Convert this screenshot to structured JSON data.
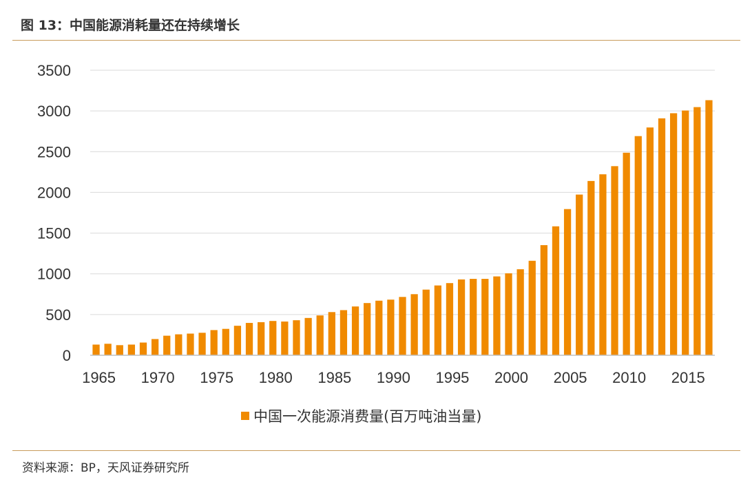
{
  "title": "图 13：中国能源消耗量还在持续增长",
  "source": "资料来源：BP，天风证券研究所",
  "colors": {
    "bar": "#f08a00",
    "grid": "#d9d9d9",
    "axis": "#bfbfbf",
    "rule": "#c89b5a"
  },
  "chart_data": {
    "type": "bar",
    "title": "",
    "xlabel": "",
    "ylabel": "",
    "ylim": [
      0,
      3500
    ],
    "yticks": [
      "0",
      "500",
      "1000",
      "1500",
      "2000",
      "2500",
      "3000",
      "3500"
    ],
    "xtick_labels": [
      "1965",
      "1970",
      "1975",
      "1980",
      "1985",
      "1990",
      "1995",
      "2000",
      "2005",
      "2010",
      "2015"
    ],
    "grid": true,
    "legend_position": "bottom-center",
    "categories": [
      "1965",
      "1966",
      "1967",
      "1968",
      "1969",
      "1970",
      "1971",
      "1972",
      "1973",
      "1974",
      "1975",
      "1976",
      "1977",
      "1978",
      "1979",
      "1980",
      "1981",
      "1982",
      "1983",
      "1984",
      "1985",
      "1986",
      "1987",
      "1988",
      "1989",
      "1990",
      "1991",
      "1992",
      "1993",
      "1994",
      "1995",
      "1996",
      "1997",
      "1998",
      "1999",
      "2000",
      "2001",
      "2002",
      "2003",
      "2004",
      "2005",
      "2006",
      "2007",
      "2008",
      "2009",
      "2010",
      "2011",
      "2012",
      "2013",
      "2014",
      "2015",
      "2016",
      "2017"
    ],
    "series": [
      {
        "name": "中国一次能源消费量(百万吨油当量)",
        "values": [
          131,
          141,
          124,
          131,
          156,
          199,
          240,
          257,
          266,
          276,
          309,
          324,
          362,
          397,
          406,
          421,
          414,
          430,
          458,
          489,
          530,
          554,
          599,
          641,
          670,
          683,
          716,
          750,
          806,
          857,
          886,
          931,
          938,
          938,
          968,
          1006,
          1056,
          1160,
          1352,
          1583,
          1795,
          1973,
          2140,
          2222,
          2322,
          2487,
          2691,
          2797,
          2909,
          2972,
          3005,
          3047,
          3132
        ]
      }
    ]
  }
}
